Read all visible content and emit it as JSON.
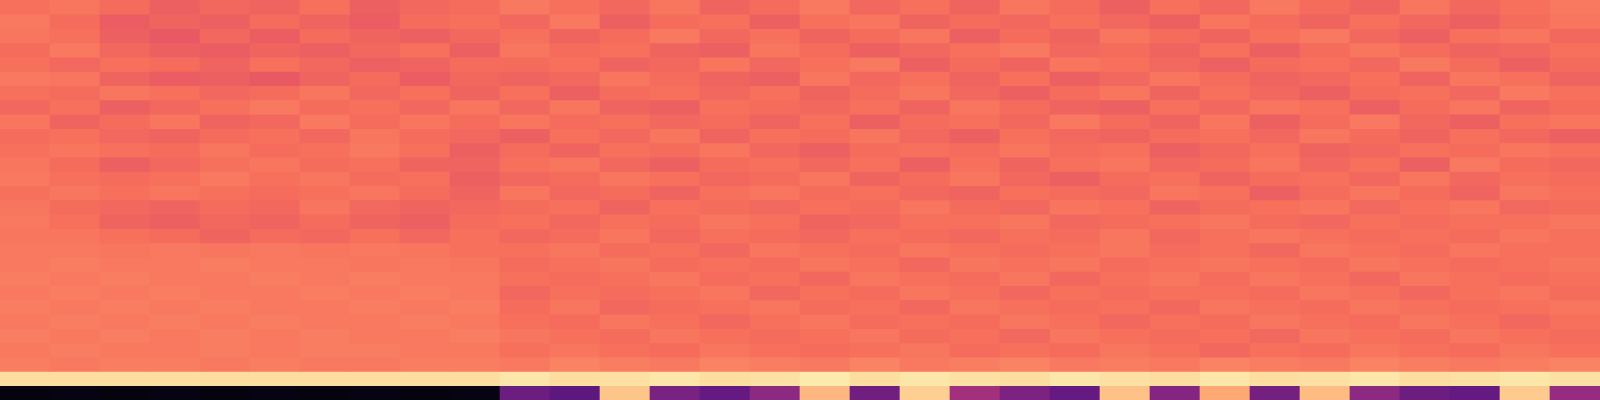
{
  "chart_data": {
    "type": "heatmap",
    "grid": false,
    "tick_labels": false,
    "color_range": [
      0,
      1
    ],
    "cells": [
      [
        0.7,
        0.71,
        0.69,
        0.66,
        0.68,
        0.67,
        0.7,
        0.66,
        0.68,
        0.69,
        0.72,
        0.7,
        0.68,
        0.71,
        0.67,
        0.69,
        0.72,
        0.68,
        0.7,
        0.67,
        0.71,
        0.69,
        0.66,
        0.7,
        0.68,
        0.72,
        0.69,
        0.67,
        0.71,
        0.68,
        0.7,
        0.72
      ],
      [
        0.72,
        0.69,
        0.65,
        0.67,
        0.66,
        0.69,
        0.67,
        0.65,
        0.69,
        0.7,
        0.68,
        0.72,
        0.66,
        0.69,
        0.7,
        0.66,
        0.7,
        0.71,
        0.67,
        0.69,
        0.68,
        0.7,
        0.68,
        0.66,
        0.71,
        0.69,
        0.67,
        0.7,
        0.68,
        0.66,
        0.69,
        0.71
      ],
      [
        0.71,
        0.7,
        0.66,
        0.64,
        0.68,
        0.65,
        0.69,
        0.67,
        0.66,
        0.68,
        0.7,
        0.67,
        0.69,
        0.72,
        0.68,
        0.7,
        0.67,
        0.69,
        0.71,
        0.66,
        0.69,
        0.67,
        0.71,
        0.69,
        0.67,
        0.7,
        0.72,
        0.68,
        0.66,
        0.7,
        0.71,
        0.68
      ],
      [
        0.69,
        0.72,
        0.68,
        0.66,
        0.65,
        0.67,
        0.66,
        0.68,
        0.7,
        0.66,
        0.71,
        0.69,
        0.7,
        0.67,
        0.66,
        0.71,
        0.69,
        0.66,
        0.68,
        0.7,
        0.72,
        0.68,
        0.69,
        0.67,
        0.7,
        0.66,
        0.69,
        0.71,
        0.69,
        0.67,
        0.68,
        0.7
      ],
      [
        0.7,
        0.68,
        0.7,
        0.69,
        0.67,
        0.7,
        0.68,
        0.66,
        0.67,
        0.69,
        0.69,
        0.7,
        0.67,
        0.68,
        0.71,
        0.68,
        0.7,
        0.72,
        0.66,
        0.69,
        0.67,
        0.71,
        0.7,
        0.68,
        0.66,
        0.69,
        0.7,
        0.68,
        0.72,
        0.69,
        0.66,
        0.69
      ],
      [
        0.72,
        0.71,
        0.67,
        0.65,
        0.66,
        0.64,
        0.67,
        0.69,
        0.65,
        0.68,
        0.67,
        0.68,
        0.71,
        0.69,
        0.67,
        0.66,
        0.71,
        0.68,
        0.7,
        0.67,
        0.7,
        0.66,
        0.68,
        0.71,
        0.69,
        0.67,
        0.68,
        0.7,
        0.67,
        0.71,
        0.7,
        0.67
      ],
      [
        0.7,
        0.69,
        0.71,
        0.7,
        0.68,
        0.69,
        0.71,
        0.68,
        0.7,
        0.67,
        0.7,
        0.66,
        0.69,
        0.7,
        0.68,
        0.7,
        0.67,
        0.69,
        0.71,
        0.68,
        0.66,
        0.69,
        0.71,
        0.67,
        0.7,
        0.68,
        0.66,
        0.69,
        0.7,
        0.68,
        0.72,
        0.7
      ],
      [
        0.68,
        0.7,
        0.66,
        0.68,
        0.7,
        0.72,
        0.69,
        0.7,
        0.68,
        0.71,
        0.68,
        0.71,
        0.67,
        0.66,
        0.7,
        0.69,
        0.68,
        0.7,
        0.67,
        0.71,
        0.69,
        0.67,
        0.66,
        0.7,
        0.68,
        0.71,
        0.7,
        0.66,
        0.69,
        0.71,
        0.67,
        0.69
      ],
      [
        0.71,
        0.67,
        0.69,
        0.71,
        0.67,
        0.68,
        0.72,
        0.69,
        0.71,
        0.69,
        0.71,
        0.69,
        0.7,
        0.68,
        0.69,
        0.67,
        0.7,
        0.66,
        0.69,
        0.7,
        0.68,
        0.72,
        0.69,
        0.67,
        0.71,
        0.66,
        0.69,
        0.72,
        0.68,
        0.66,
        0.7,
        0.71
      ],
      [
        0.69,
        0.7,
        0.68,
        0.67,
        0.69,
        0.7,
        0.68,
        0.71,
        0.69,
        0.68,
        0.66,
        0.7,
        0.68,
        0.71,
        0.67,
        0.7,
        0.69,
        0.71,
        0.68,
        0.66,
        0.7,
        0.68,
        0.67,
        0.69,
        0.7,
        0.68,
        0.71,
        0.69,
        0.67,
        0.7,
        0.68,
        0.66
      ],
      [
        0.7,
        0.71,
        0.7,
        0.69,
        0.71,
        0.69,
        0.7,
        0.72,
        0.7,
        0.66,
        0.69,
        0.67,
        0.7,
        0.69,
        0.71,
        0.68,
        0.66,
        0.69,
        0.7,
        0.69,
        0.71,
        0.69,
        0.7,
        0.66,
        0.68,
        0.7,
        0.67,
        0.68,
        0.7,
        0.69,
        0.71,
        0.7
      ],
      [
        0.71,
        0.69,
        0.66,
        0.68,
        0.7,
        0.71,
        0.69,
        0.7,
        0.67,
        0.67,
        0.7,
        0.71,
        0.68,
        0.66,
        0.69,
        0.7,
        0.68,
        0.7,
        0.66,
        0.7,
        0.67,
        0.7,
        0.71,
        0.68,
        0.69,
        0.71,
        0.68,
        0.7,
        0.66,
        0.72,
        0.69,
        0.68
      ],
      [
        0.72,
        0.7,
        0.69,
        0.7,
        0.72,
        0.7,
        0.71,
        0.69,
        0.7,
        0.66,
        0.68,
        0.69,
        0.71,
        0.7,
        0.68,
        0.69,
        0.71,
        0.67,
        0.69,
        0.71,
        0.68,
        0.66,
        0.69,
        0.7,
        0.67,
        0.69,
        0.7,
        0.68,
        0.71,
        0.68,
        0.7,
        0.69
      ],
      [
        0.7,
        0.71,
        0.7,
        0.71,
        0.7,
        0.69,
        0.7,
        0.71,
        0.69,
        0.67,
        0.71,
        0.68,
        0.69,
        0.67,
        0.7,
        0.71,
        0.69,
        0.7,
        0.68,
        0.67,
        0.7,
        0.69,
        0.68,
        0.71,
        0.7,
        0.66,
        0.69,
        0.71,
        0.69,
        0.67,
        0.71,
        0.7
      ],
      [
        0.71,
        0.69,
        0.68,
        0.67,
        0.69,
        0.68,
        0.71,
        0.68,
        0.67,
        0.68,
        0.69,
        0.7,
        0.67,
        0.7,
        0.69,
        0.68,
        0.7,
        0.69,
        0.71,
        0.69,
        0.68,
        0.71,
        0.7,
        0.67,
        0.69,
        0.7,
        0.71,
        0.68,
        0.7,
        0.71,
        0.68,
        0.69
      ],
      [
        0.72,
        0.7,
        0.67,
        0.66,
        0.68,
        0.67,
        0.69,
        0.67,
        0.66,
        0.69,
        0.7,
        0.68,
        0.7,
        0.69,
        0.71,
        0.7,
        0.67,
        0.68,
        0.7,
        0.7,
        0.71,
        0.68,
        0.69,
        0.7,
        0.71,
        0.69,
        0.68,
        0.7,
        0.69,
        0.7,
        0.7,
        0.71
      ],
      [
        0.71,
        0.71,
        0.7,
        0.69,
        0.67,
        0.69,
        0.68,
        0.7,
        0.68,
        0.7,
        0.68,
        0.69,
        0.71,
        0.68,
        0.7,
        0.69,
        0.68,
        0.7,
        0.69,
        0.68,
        0.7,
        0.69,
        0.71,
        0.68,
        0.7,
        0.71,
        0.7,
        0.69,
        0.7,
        0.69,
        0.71,
        0.7
      ],
      [
        0.72,
        0.72,
        0.71,
        0.72,
        0.71,
        0.72,
        0.71,
        0.72,
        0.71,
        0.7,
        0.7,
        0.71,
        0.69,
        0.7,
        0.68,
        0.71,
        0.7,
        0.69,
        0.71,
        0.7,
        0.69,
        0.7,
        0.71,
        0.69,
        0.7,
        0.68,
        0.71,
        0.7,
        0.69,
        0.71,
        0.7,
        0.7
      ],
      [
        0.72,
        0.73,
        0.72,
        0.72,
        0.73,
        0.72,
        0.72,
        0.71,
        0.72,
        0.71,
        0.69,
        0.7,
        0.71,
        0.69,
        0.7,
        0.69,
        0.71,
        0.7,
        0.68,
        0.71,
        0.7,
        0.71,
        0.69,
        0.7,
        0.71,
        0.7,
        0.69,
        0.71,
        0.7,
        0.69,
        0.7,
        0.71
      ],
      [
        0.73,
        0.72,
        0.73,
        0.72,
        0.72,
        0.73,
        0.72,
        0.73,
        0.72,
        0.72,
        0.7,
        0.69,
        0.7,
        0.71,
        0.69,
        0.7,
        0.68,
        0.71,
        0.7,
        0.69,
        0.71,
        0.68,
        0.7,
        0.71,
        0.69,
        0.71,
        0.7,
        0.68,
        0.71,
        0.7,
        0.69,
        0.7
      ],
      [
        0.72,
        0.73,
        0.72,
        0.73,
        0.72,
        0.72,
        0.73,
        0.72,
        0.73,
        0.72,
        0.68,
        0.7,
        0.69,
        0.7,
        0.71,
        0.68,
        0.7,
        0.69,
        0.71,
        0.7,
        0.68,
        0.7,
        0.69,
        0.7,
        0.7,
        0.69,
        0.71,
        0.7,
        0.68,
        0.7,
        0.71,
        0.69
      ],
      [
        0.73,
        0.72,
        0.73,
        0.72,
        0.73,
        0.72,
        0.72,
        0.73,
        0.72,
        0.73,
        0.69,
        0.71,
        0.68,
        0.69,
        0.7,
        0.71,
        0.69,
        0.7,
        0.68,
        0.71,
        0.7,
        0.69,
        0.7,
        0.68,
        0.71,
        0.7,
        0.69,
        0.71,
        0.7,
        0.69,
        0.7,
        0.71
      ],
      [
        0.72,
        0.73,
        0.72,
        0.73,
        0.72,
        0.73,
        0.72,
        0.72,
        0.73,
        0.72,
        0.7,
        0.69,
        0.71,
        0.7,
        0.68,
        0.7,
        0.71,
        0.69,
        0.7,
        0.69,
        0.71,
        0.7,
        0.68,
        0.7,
        0.69,
        0.71,
        0.7,
        0.69,
        0.71,
        0.7,
        0.68,
        0.7
      ],
      [
        0.73,
        0.72,
        0.73,
        0.72,
        0.73,
        0.72,
        0.73,
        0.72,
        0.72,
        0.73,
        0.71,
        0.7,
        0.69,
        0.71,
        0.7,
        0.69,
        0.7,
        0.71,
        0.69,
        0.7,
        0.68,
        0.71,
        0.7,
        0.69,
        0.7,
        0.68,
        0.71,
        0.7,
        0.69,
        0.71,
        0.7,
        0.69
      ],
      [
        0.72,
        0.73,
        0.72,
        0.72,
        0.73,
        0.72,
        0.73,
        0.73,
        0.72,
        0.72,
        0.7,
        0.71,
        0.7,
        0.69,
        0.71,
        0.7,
        0.69,
        0.7,
        0.71,
        0.69,
        0.7,
        0.69,
        0.71,
        0.7,
        0.68,
        0.7,
        0.69,
        0.71,
        0.7,
        0.69,
        0.71,
        0.7
      ],
      [
        0.73,
        0.72,
        0.73,
        0.73,
        0.72,
        0.73,
        0.72,
        0.72,
        0.73,
        0.73,
        0.72,
        0.74,
        0.73,
        0.72,
        0.74,
        0.73,
        0.72,
        0.74,
        0.72,
        0.73,
        0.74,
        0.72,
        0.73,
        0.72,
        0.74,
        0.73,
        0.72,
        0.74,
        0.73,
        0.72,
        0.73,
        0.74
      ],
      [
        0.93,
        0.93,
        0.93,
        0.93,
        0.93,
        0.93,
        0.93,
        0.93,
        0.93,
        0.93,
        0.95,
        0.93,
        0.94,
        0.95,
        0.93,
        0.94,
        0.96,
        0.93,
        0.95,
        0.94,
        0.93,
        0.95,
        0.94,
        0.93,
        0.95,
        0.93,
        0.94,
        0.95,
        0.93,
        0.94,
        0.95,
        0.94
      ],
      [
        0.02,
        0.03,
        0.02,
        0.03,
        0.02,
        0.03,
        0.02,
        0.03,
        0.02,
        0.03,
        0.32,
        0.28,
        0.88,
        0.35,
        0.3,
        0.4,
        0.85,
        0.33,
        0.9,
        0.45,
        0.36,
        0.3,
        0.87,
        0.38,
        0.82,
        0.34,
        0.86,
        0.4,
        0.32,
        0.3,
        0.89,
        0.42
      ]
    ]
  }
}
